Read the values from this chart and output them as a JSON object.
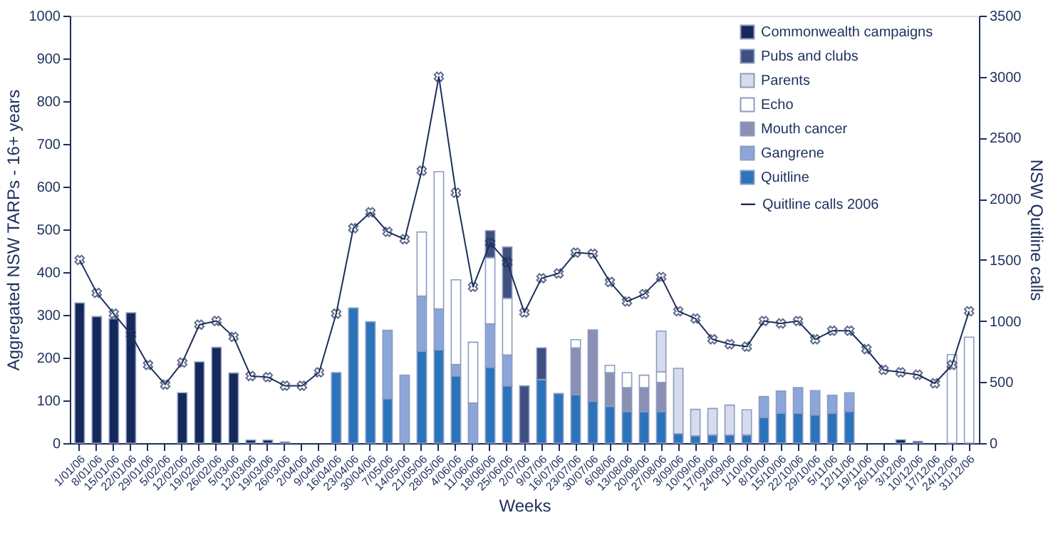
{
  "chart_data": {
    "type": "bar",
    "stacked": true,
    "xlabel": "Weeks",
    "ylabel": "Aggregated NSW TARPs - 16+ years",
    "y2label": "NSW Quitline calls",
    "categories": [
      "1/01/06",
      "8/01/06",
      "15/01/06",
      "22/01/06",
      "29/01/06",
      "5/02/06",
      "12/02/06",
      "19/02/06",
      "26/02/06",
      "5/03/06",
      "12/03/06",
      "19/03/06",
      "26/03/06",
      "2/04/06",
      "9/04/06",
      "16/04/06",
      "23/04/06",
      "30/04/06",
      "7/05/06",
      "14/05/06",
      "21/05/06",
      "28/05/06",
      "4/06/06",
      "11/06/06",
      "18/06/06",
      "25/06/06",
      "2/07/06",
      "9/07/06",
      "16/07/06",
      "23/07/06",
      "30/07/06",
      "6/08/06",
      "13/08/06",
      "20/08/06",
      "27/08/06",
      "3/09/06",
      "10/09/06",
      "17/09/06",
      "24/09/06",
      "1/10/06",
      "8/10/06",
      "15/10/06",
      "22/10/06",
      "29/10/06",
      "5/11/06",
      "12/11/06",
      "19/11/06",
      "26/11/06",
      "3/12/06",
      "10/12/06",
      "17/12/06",
      "24/12/06",
      "31/12/06"
    ],
    "series": [
      {
        "name": "Quitline",
        "color": "#2a74bc",
        "values": [
          null,
          null,
          null,
          null,
          null,
          null,
          null,
          null,
          null,
          null,
          null,
          null,
          null,
          null,
          null,
          165,
          316,
          284,
          104,
          null,
          215,
          218,
          157,
          null,
          177,
          134,
          null,
          149,
          116,
          113,
          98,
          86,
          74,
          74,
          74,
          22,
          17,
          19,
          19,
          19,
          60,
          70,
          70,
          66,
          70,
          74,
          null,
          null,
          null,
          null,
          null,
          null,
          null
        ]
      },
      {
        "name": "Gangrene",
        "color": "#8ba6d8",
        "values": [
          null,
          null,
          null,
          null,
          null,
          null,
          null,
          null,
          null,
          null,
          null,
          null,
          null,
          null,
          null,
          null,
          null,
          null,
          160,
          159,
          129,
          96,
          27,
          94,
          102,
          72,
          null,
          null,
          null,
          null,
          null,
          null,
          null,
          null,
          null,
          null,
          null,
          null,
          null,
          null,
          49,
          52,
          60,
          57,
          42,
          44,
          null,
          null,
          null,
          null,
          null,
          null,
          null
        ]
      },
      {
        "name": "Mouth cancer",
        "color": "#8a90b4",
        "values": [
          null,
          null,
          null,
          null,
          null,
          null,
          null,
          null,
          null,
          null,
          null,
          null,
          null,
          null,
          null,
          null,
          null,
          null,
          null,
          null,
          null,
          null,
          null,
          null,
          null,
          null,
          null,
          null,
          null,
          110,
          167,
          79,
          56,
          56,
          68,
          null,
          null,
          null,
          null,
          null,
          null,
          null,
          null,
          null,
          null,
          null,
          null,
          null,
          null,
          null,
          null,
          null,
          null
        ]
      },
      {
        "name": "Echo",
        "color": "#ffffff",
        "values": [
          null,
          null,
          null,
          null,
          null,
          null,
          null,
          null,
          null,
          null,
          null,
          null,
          null,
          null,
          null,
          null,
          null,
          null,
          null,
          null,
          150,
          321,
          198,
          142,
          155,
          133,
          null,
          null,
          null,
          19,
          null,
          17,
          35,
          29,
          25,
          null,
          null,
          null,
          null,
          null,
          null,
          null,
          null,
          null,
          null,
          null,
          null,
          null,
          null,
          null,
          null,
          207,
          248
        ]
      },
      {
        "name": "Parents",
        "color": "#d6dcec",
        "values": [
          null,
          null,
          null,
          null,
          null,
          null,
          null,
          null,
          null,
          null,
          null,
          null,
          null,
          null,
          null,
          null,
          null,
          null,
          null,
          null,
          null,
          null,
          null,
          null,
          null,
          null,
          null,
          null,
          null,
          null,
          null,
          null,
          null,
          null,
          95,
          153,
          62,
          62,
          70,
          59,
          null,
          null,
          null,
          null,
          null,
          null,
          null,
          null,
          null,
          null,
          null,
          null,
          null
        ]
      },
      {
        "name": "Pubs and clubs",
        "color": "#3f4f80",
        "values": [
          null,
          null,
          null,
          null,
          null,
          null,
          null,
          null,
          null,
          null,
          null,
          null,
          null,
          null,
          null,
          null,
          null,
          null,
          null,
          null,
          null,
          null,
          null,
          null,
          63,
          120,
          134,
          74,
          null,
          null,
          null,
          null,
          null,
          null,
          null,
          null,
          null,
          null,
          null,
          null,
          null,
          null,
          null,
          null,
          null,
          null,
          null,
          null,
          null,
          null,
          null,
          null,
          null
        ]
      },
      {
        "name": "Commonwealth campaigns",
        "color": "#14285a",
        "values": [
          328,
          296,
          291,
          305,
          null,
          null,
          118,
          190,
          224,
          164,
          7,
          7,
          3,
          null,
          null,
          null,
          null,
          null,
          null,
          null,
          null,
          null,
          null,
          null,
          null,
          null,
          null,
          null,
          null,
          null,
          null,
          null,
          null,
          null,
          null,
          null,
          null,
          null,
          null,
          null,
          null,
          null,
          null,
          null,
          null,
          null,
          null,
          null,
          8,
          4,
          null,
          null,
          null
        ]
      },
      {
        "name": "Quitline calls 2006",
        "color": "#1c2e5c",
        "type": "line",
        "axis": "y2",
        "marker": "cross",
        "line_style": "solid",
        "values": [
          1500,
          1230,
          1060,
          890,
          640,
          480,
          660,
          970,
          1000,
          870,
          550,
          540,
          470,
          470,
          580,
          1060,
          1760,
          1890,
          1730,
          1670,
          2230,
          3000,
          2050,
          1280,
          1640,
          1480,
          1070,
          1350,
          1390,
          1560,
          1550,
          1320,
          1160,
          1220,
          1360,
          1080,
          1020,
          850,
          810,
          790,
          1000,
          980,
          1000,
          850,
          920,
          920,
          770,
          600,
          580,
          560,
          490,
          640,
          1080
        ]
      }
    ],
    "ylim": [
      0,
      1000
    ],
    "yticks": [
      0,
      100,
      200,
      300,
      400,
      500,
      600,
      700,
      800,
      900,
      1000
    ],
    "y2lim": [
      0,
      3500
    ],
    "y2ticks": [
      0,
      500,
      1000,
      1500,
      2000,
      2500,
      3000,
      3500
    ],
    "grid": false,
    "legend": "top right"
  }
}
